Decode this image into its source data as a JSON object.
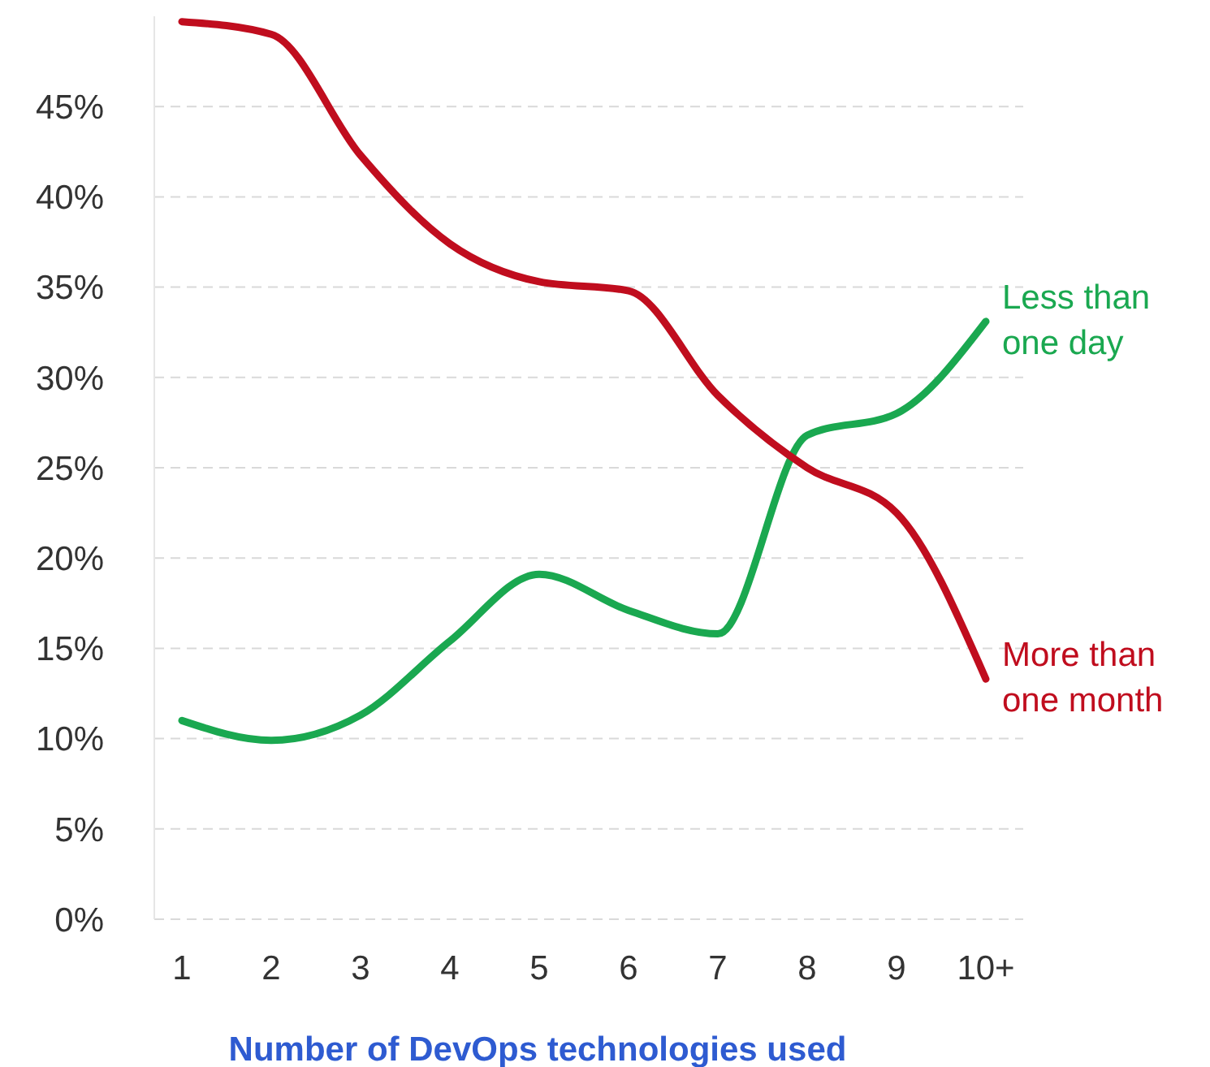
{
  "chart_data": {
    "type": "line",
    "xlabel": "Number of DevOps technologies used",
    "categories": [
      "1",
      "2",
      "3",
      "4",
      "5",
      "6",
      "7",
      "8",
      "9",
      "10+"
    ],
    "series": [
      {
        "name": "Less than one day",
        "color": "#1aa850",
        "values": [
          11,
          9.9,
          11.3,
          15.4,
          19.1,
          17.1,
          15.8,
          26.8,
          28,
          33.1
        ]
      },
      {
        "name": "More than one month",
        "color": "#c00d1e",
        "values": [
          49.7,
          49,
          42.3,
          37.4,
          35.3,
          34.8,
          29,
          25,
          22.5,
          13.3
        ]
      }
    ],
    "ylim": [
      0,
      50
    ],
    "yticks": [
      {
        "value": 0,
        "label": "0%"
      },
      {
        "value": 5,
        "label": "5%"
      },
      {
        "value": 10,
        "label": "10%"
      },
      {
        "value": 15,
        "label": "15%"
      },
      {
        "value": 20,
        "label": "20%"
      },
      {
        "value": 25,
        "label": "25%"
      },
      {
        "value": 30,
        "label": "30%"
      },
      {
        "value": 35,
        "label": "35%"
      },
      {
        "value": 40,
        "label": "40%"
      },
      {
        "value": 45,
        "label": "45%"
      }
    ],
    "grid": "y",
    "line_style": "solid",
    "marker": "none"
  }
}
